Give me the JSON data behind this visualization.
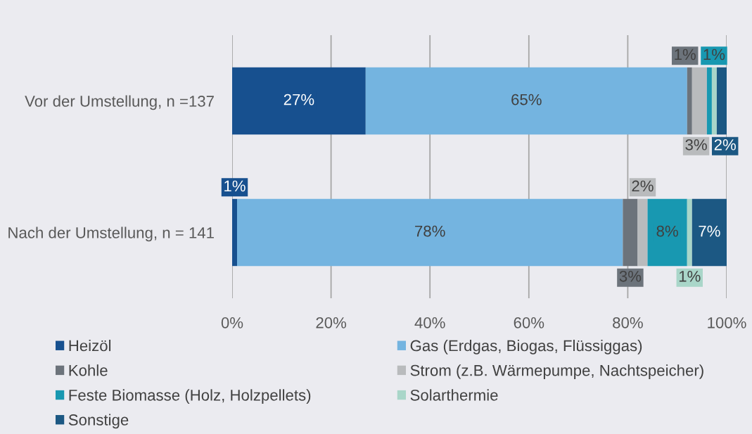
{
  "chart_data": {
    "type": "bar",
    "orientation": "horizontal",
    "stacked": true,
    "categories": [
      "Vor der Umstellung, n =137",
      "Nach der Umstellung, n = 141"
    ],
    "series": [
      {
        "name": "Heizöl",
        "color": "#17508f",
        "values": [
          27,
          1
        ],
        "value_labels": [
          "27%",
          "1%"
        ]
      },
      {
        "name": "Gas (Erdgas, Biogas, Flüssiggas)",
        "color": "#74b4e0",
        "values": [
          65,
          78
        ],
        "value_labels": [
          "65%",
          "78%"
        ]
      },
      {
        "name": "Kohle",
        "color": "#6c737b",
        "values": [
          1,
          3
        ],
        "value_labels": [
          "1%",
          "3%"
        ]
      },
      {
        "name": "Strom (z.B. Wärmepumpe, Nachtspeicher)",
        "color": "#b9bbbd",
        "values": [
          3,
          2
        ],
        "value_labels": [
          "3%",
          "2%"
        ]
      },
      {
        "name": "Feste Biomasse (Holz, Holzpellets)",
        "color": "#1898b1",
        "values": [
          1,
          8
        ],
        "value_labels": [
          "1%",
          "8%"
        ]
      },
      {
        "name": "Solarthermie",
        "color": "#a9d6c9",
        "values": [
          1,
          1
        ],
        "value_labels": [
          null,
          "1%"
        ]
      },
      {
        "name": "Sonstige",
        "color": "#1c5883",
        "values": [
          2,
          7
        ],
        "value_labels": [
          "2%",
          "7%"
        ]
      }
    ],
    "xlim": [
      0,
      100
    ],
    "xticks": [
      {
        "value": 0,
        "label": "0%"
      },
      {
        "value": 20,
        "label": "20%"
      },
      {
        "value": 40,
        "label": "40%"
      },
      {
        "value": 60,
        "label": "60%"
      },
      {
        "value": 80,
        "label": "80%"
      },
      {
        "value": 100,
        "label": "100%"
      }
    ],
    "grid": "x",
    "legend": "bottom"
  }
}
